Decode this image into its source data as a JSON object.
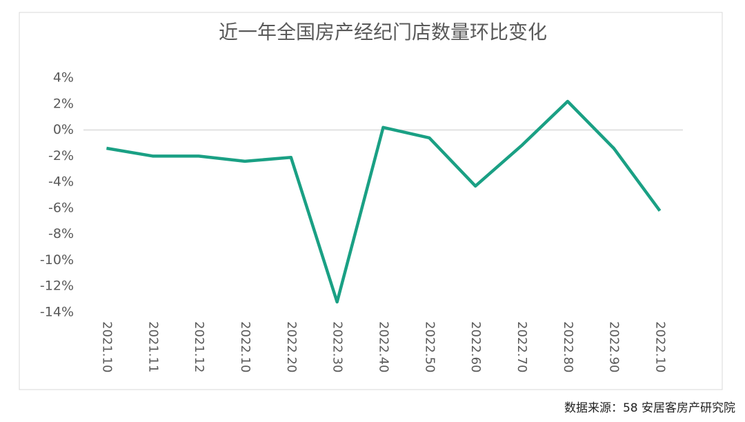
{
  "chart_data": {
    "type": "line",
    "title": "近一年全国房产经纪门店数量环比变化",
    "categories": [
      "2021.10",
      "2021.11",
      "2021.12",
      "2022.10",
      "2022.20",
      "2022.30",
      "2022.40",
      "2022.50",
      "2022.60",
      "2022.70",
      "2022.80",
      "2022.90",
      "2022.10"
    ],
    "series": [
      {
        "name": "门店数量环比",
        "color": "#1aa084",
        "values": [
          -1.4,
          -2.0,
          -2.0,
          -2.4,
          -2.1,
          -13.2,
          0.2,
          -0.6,
          -4.3,
          -1.2,
          2.2,
          -1.4,
          -6.2
        ]
      }
    ],
    "ylim": [
      -14,
      4
    ],
    "yticks": [
      {
        "value": -14,
        "label": "-14%"
      },
      {
        "value": -12,
        "label": "-12%"
      },
      {
        "value": -10,
        "label": "-10%"
      },
      {
        "value": -8,
        "label": "-8%"
      },
      {
        "value": -6,
        "label": "-6%"
      },
      {
        "value": -4,
        "label": "-4%"
      },
      {
        "value": -2,
        "label": "-2%"
      },
      {
        "value": 0,
        "label": "0%"
      },
      {
        "value": 2,
        "label": "2%"
      },
      {
        "value": 4,
        "label": "4%"
      }
    ],
    "grid": false,
    "source": "数据来源：58 安居客房产研究院"
  }
}
